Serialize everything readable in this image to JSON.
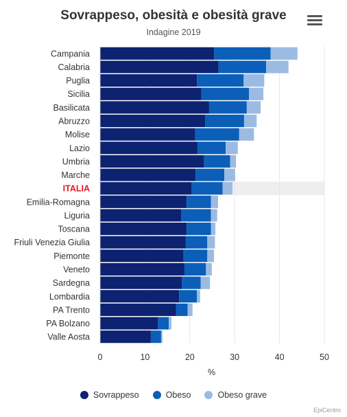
{
  "header": {
    "title": "Sovrappeso, obesità e obesità grave",
    "subtitle": "Indagine 2019",
    "menu_icon": "hamburger-menu-icon"
  },
  "legend": [
    {
      "label": "Sovrappeso",
      "color": "#0d2270"
    },
    {
      "label": "Obeso",
      "color": "#0b5fb8"
    },
    {
      "label": "Obeso grave",
      "color": "#9bbbe3"
    }
  ],
  "credit": "EpiCentro",
  "colors": {
    "highlight_label": "#e0191f",
    "highlight_band": "#eeeeee",
    "grid": "#e6e6e6"
  },
  "chart_data": {
    "type": "bar",
    "orientation": "horizontal",
    "stacked": true,
    "title": "Sovrappeso, obesità e obesità grave",
    "subtitle": "Indagine 2019",
    "xlabel": "%",
    "xlim": [
      0,
      50
    ],
    "xticks": [
      "0",
      "10",
      "20",
      "30",
      "40",
      "50"
    ],
    "grid": true,
    "legend_position": "bottom",
    "highlight_category": "ITALIA",
    "categories": [
      "Campania",
      "Calabria",
      "Puglia",
      "Sicilia",
      "Basilicata",
      "Abruzzo",
      "Molise",
      "Lazio",
      "Umbria",
      "Marche",
      "ITALIA",
      "Emilia-Romagna",
      "Liguria",
      "Toscana",
      "Friuli Venezia Giulia",
      "Piemonte",
      "Veneto",
      "Sardegna",
      "Lombardia",
      "PA Trento",
      "PA Bolzano",
      "Valle Aosta"
    ],
    "series": [
      {
        "name": "Sovrappeso",
        "color": "#0d2270",
        "values": [
          25.4,
          26.4,
          21.6,
          22.6,
          24.3,
          23.4,
          21.2,
          21.7,
          23.2,
          21.3,
          20.4,
          19.3,
          18.1,
          19.3,
          19.1,
          18.6,
          18.8,
          18.2,
          17.6,
          16.9,
          12.9,
          11.3
        ]
      },
      {
        "name": "Obeso",
        "color": "#0b5fb8",
        "values": [
          12.6,
          10.6,
          10.4,
          10.6,
          8.4,
          8.7,
          9.8,
          6.3,
          5.8,
          6.4,
          6.9,
          5.4,
          6.6,
          5.4,
          4.8,
          5.3,
          4.8,
          4.2,
          4.0,
          2.6,
          2.4,
          2.3
        ]
      },
      {
        "name": "Obeso grave",
        "color": "#9bbbe3",
        "values": [
          6.0,
          5.0,
          4.6,
          3.2,
          3.1,
          2.8,
          3.3,
          2.7,
          1.3,
          2.4,
          2.2,
          1.6,
          1.4,
          1.0,
          1.7,
          1.5,
          1.3,
          2.1,
          0.7,
          1.1,
          0.6,
          0.3
        ]
      }
    ]
  }
}
